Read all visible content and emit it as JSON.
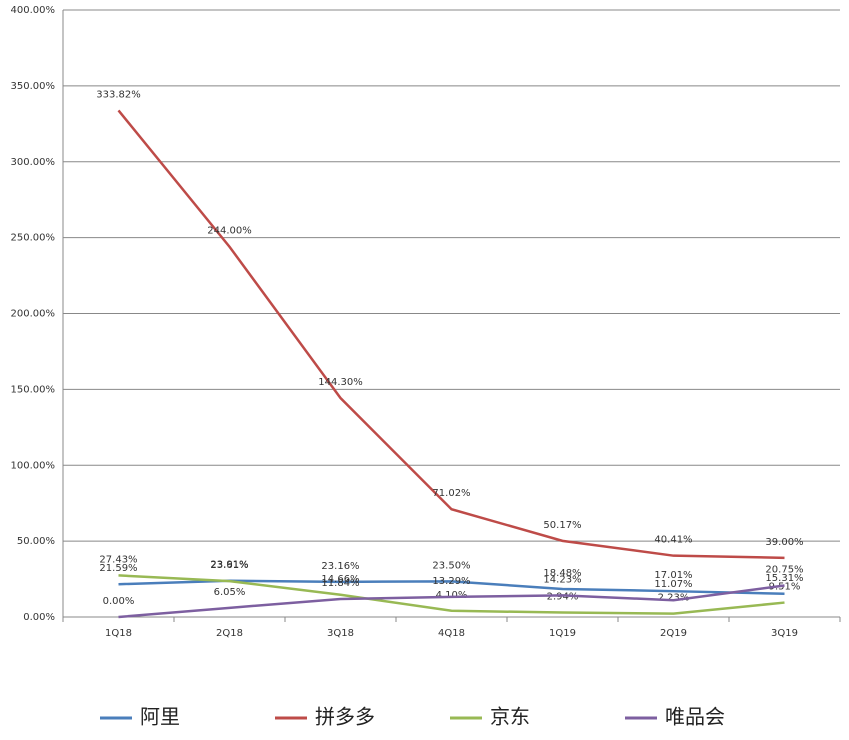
{
  "chart_data": {
    "type": "line",
    "categories": [
      "1Q18",
      "2Q18",
      "3Q18",
      "4Q18",
      "1Q19",
      "2Q19",
      "3Q19"
    ],
    "series": [
      {
        "name": "阿里",
        "color": "#4a7ebb",
        "values": [
          21.59,
          23.91,
          23.16,
          23.5,
          18.48,
          17.01,
          15.31
        ],
        "value_labels": [
          "21.59%",
          "23.91%",
          "23.16%",
          "23.50%",
          "18.48%",
          "17.01%",
          "15.31%"
        ]
      },
      {
        "name": "拼多多",
        "color": "#be4b48",
        "values": [
          333.82,
          244.0,
          144.3,
          71.02,
          50.17,
          40.41,
          39.0
        ],
        "value_labels": [
          "333.82%",
          "244.00%",
          "144.30%",
          "71.02%",
          "50.17%",
          "40.41%",
          "39.00%"
        ]
      },
      {
        "name": "京东",
        "color": "#98b954",
        "values": [
          27.43,
          23.61,
          14.66,
          4.1,
          2.94,
          2.23,
          9.51
        ],
        "value_labels": [
          "27.43%",
          "23.61%",
          "14.66%",
          "4.10%",
          "2.94%",
          "2.23%",
          "9.51%"
        ]
      },
      {
        "name": "唯品会",
        "color": "#7d5fa0",
        "values": [
          0.0,
          6.05,
          11.84,
          13.29,
          14.23,
          11.07,
          20.75
        ],
        "value_labels": [
          "0.00%",
          "6.05%",
          "11.84%",
          "13.29%",
          "14.23%",
          "11.07%",
          "20.75%"
        ]
      }
    ],
    "ylim": [
      0,
      400
    ],
    "yticks": [
      {
        "value": 0,
        "label": "0.00%"
      },
      {
        "value": 50,
        "label": "50.00%"
      },
      {
        "value": 100,
        "label": "100.00%"
      },
      {
        "value": 150,
        "label": "150.00%"
      },
      {
        "value": 200,
        "label": "200.00%"
      },
      {
        "value": 250,
        "label": "250.00%"
      },
      {
        "value": 300,
        "label": "300.00%"
      },
      {
        "value": 350,
        "label": "350.00%"
      },
      {
        "value": 400,
        "label": "400.00%"
      }
    ],
    "grid": true
  }
}
